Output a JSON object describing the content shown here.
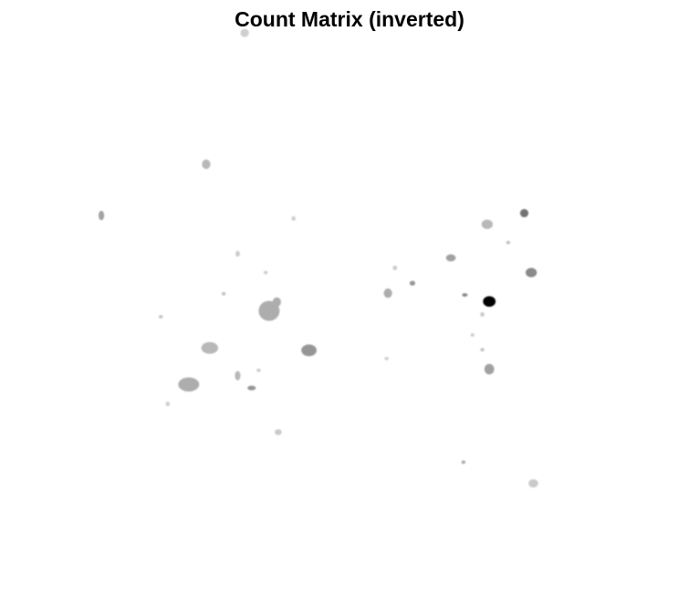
{
  "colors": {
    "background": "#ffffff",
    "low": "#ffffff",
    "high": "#000000"
  },
  "chart_data": {
    "type": "heatmap",
    "title": "Count Matrix (inverted)",
    "xlabel": "",
    "ylabel": "",
    "axes_visible": false,
    "colormap": "gray_inverted",
    "xlim": [
      0,
      1
    ],
    "ylim": [
      0,
      1
    ],
    "value_range": [
      0,
      1
    ],
    "blobs": [
      {
        "x": 0.35,
        "y": 0.025,
        "value": 0.1,
        "rx": 0.006,
        "ry": 0.007
      },
      {
        "x": 0.295,
        "y": 0.248,
        "value": 0.2,
        "rx": 0.006,
        "ry": 0.008
      },
      {
        "x": 0.145,
        "y": 0.335,
        "value": 0.3,
        "rx": 0.004,
        "ry": 0.008
      },
      {
        "x": 0.42,
        "y": 0.34,
        "value": 0.1,
        "rx": 0.003,
        "ry": 0.004
      },
      {
        "x": 0.34,
        "y": 0.4,
        "value": 0.12,
        "rx": 0.003,
        "ry": 0.005
      },
      {
        "x": 0.38,
        "y": 0.432,
        "value": 0.1,
        "rx": 0.003,
        "ry": 0.003
      },
      {
        "x": 0.32,
        "y": 0.468,
        "value": 0.15,
        "rx": 0.003,
        "ry": 0.003
      },
      {
        "x": 0.396,
        "y": 0.482,
        "value": 0.25,
        "rx": 0.006,
        "ry": 0.008
      },
      {
        "x": 0.385,
        "y": 0.497,
        "value": 0.25,
        "rx": 0.015,
        "ry": 0.017
      },
      {
        "x": 0.23,
        "y": 0.507,
        "value": 0.15,
        "rx": 0.003,
        "ry": 0.003
      },
      {
        "x": 0.3,
        "y": 0.56,
        "value": 0.2,
        "rx": 0.012,
        "ry": 0.01
      },
      {
        "x": 0.442,
        "y": 0.564,
        "value": 0.35,
        "rx": 0.011,
        "ry": 0.01
      },
      {
        "x": 0.27,
        "y": 0.622,
        "value": 0.25,
        "rx": 0.015,
        "ry": 0.012
      },
      {
        "x": 0.34,
        "y": 0.607,
        "value": 0.2,
        "rx": 0.004,
        "ry": 0.008
      },
      {
        "x": 0.36,
        "y": 0.628,
        "value": 0.35,
        "rx": 0.006,
        "ry": 0.004
      },
      {
        "x": 0.37,
        "y": 0.598,
        "value": 0.1,
        "rx": 0.003,
        "ry": 0.003
      },
      {
        "x": 0.24,
        "y": 0.655,
        "value": 0.1,
        "rx": 0.003,
        "ry": 0.004
      },
      {
        "x": 0.398,
        "y": 0.703,
        "value": 0.12,
        "rx": 0.005,
        "ry": 0.005
      },
      {
        "x": 0.553,
        "y": 0.578,
        "value": 0.1,
        "rx": 0.003,
        "ry": 0.003
      },
      {
        "x": 0.555,
        "y": 0.467,
        "value": 0.25,
        "rx": 0.006,
        "ry": 0.008
      },
      {
        "x": 0.565,
        "y": 0.424,
        "value": 0.12,
        "rx": 0.003,
        "ry": 0.004
      },
      {
        "x": 0.59,
        "y": 0.45,
        "value": 0.35,
        "rx": 0.004,
        "ry": 0.004
      },
      {
        "x": 0.645,
        "y": 0.407,
        "value": 0.3,
        "rx": 0.007,
        "ry": 0.006
      },
      {
        "x": 0.665,
        "y": 0.47,
        "value": 0.4,
        "rx": 0.004,
        "ry": 0.003
      },
      {
        "x": 0.697,
        "y": 0.35,
        "value": 0.2,
        "rx": 0.008,
        "ry": 0.008
      },
      {
        "x": 0.727,
        "y": 0.381,
        "value": 0.15,
        "rx": 0.003,
        "ry": 0.003
      },
      {
        "x": 0.75,
        "y": 0.331,
        "value": 0.5,
        "rx": 0.006,
        "ry": 0.007
      },
      {
        "x": 0.76,
        "y": 0.432,
        "value": 0.4,
        "rx": 0.008,
        "ry": 0.008
      },
      {
        "x": 0.7,
        "y": 0.481,
        "value": 1.0,
        "rx": 0.009,
        "ry": 0.009
      },
      {
        "x": 0.69,
        "y": 0.503,
        "value": 0.12,
        "rx": 0.003,
        "ry": 0.004
      },
      {
        "x": 0.676,
        "y": 0.538,
        "value": 0.1,
        "rx": 0.003,
        "ry": 0.003
      },
      {
        "x": 0.69,
        "y": 0.563,
        "value": 0.15,
        "rx": 0.003,
        "ry": 0.003
      },
      {
        "x": 0.7,
        "y": 0.596,
        "value": 0.3,
        "rx": 0.007,
        "ry": 0.009
      },
      {
        "x": 0.663,
        "y": 0.754,
        "value": 0.25,
        "rx": 0.003,
        "ry": 0.003
      },
      {
        "x": 0.763,
        "y": 0.79,
        "value": 0.12,
        "rx": 0.007,
        "ry": 0.007
      }
    ]
  }
}
